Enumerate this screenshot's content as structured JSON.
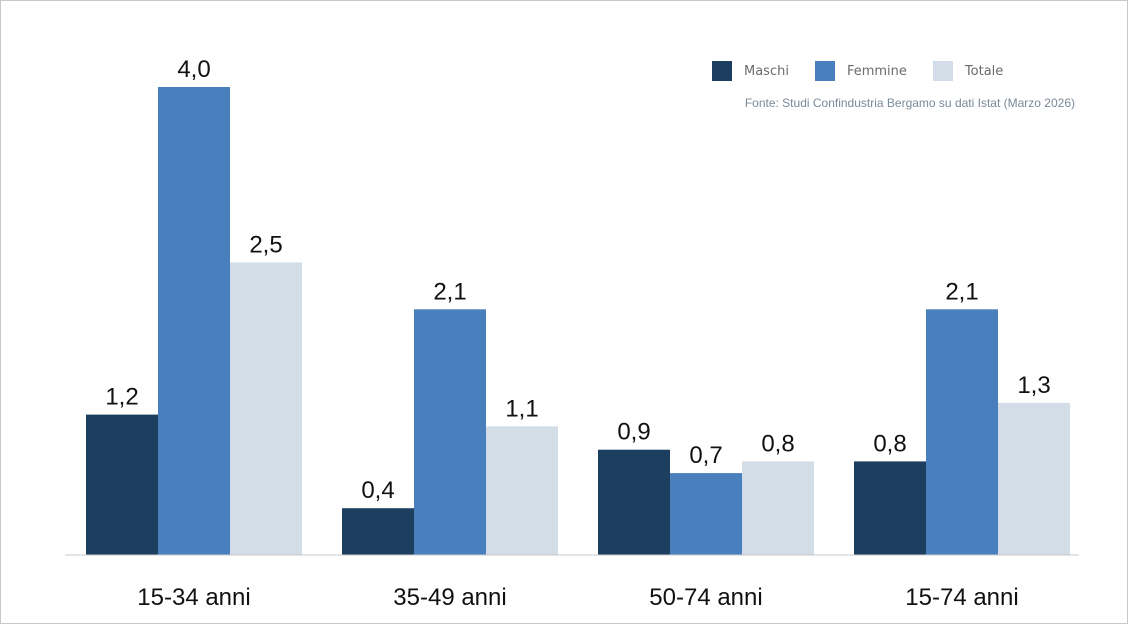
{
  "chart_data": {
    "type": "bar",
    "categories": [
      "15-34 anni",
      "35-49 anni",
      "50-74 anni",
      "15-74 anni"
    ],
    "series": [
      {
        "name": "Maschi",
        "values": [
          1.2,
          0.4,
          0.9,
          0.8
        ],
        "color": "#1c3f60"
      },
      {
        "name": "Femmine",
        "values": [
          4.0,
          2.1,
          0.7,
          2.1
        ],
        "color": "#4a7fbd"
      },
      {
        "name": "Totale",
        "values": [
          2.5,
          1.1,
          0.8,
          1.3
        ],
        "color": "#d3dde7"
      }
    ],
    "value_labels": [
      [
        "1,2",
        "0,4",
        "0,9",
        "0,8"
      ],
      [
        "4,0",
        "2,1",
        "0,7",
        "2,1"
      ],
      [
        "2,5",
        "1,1",
        "0,8",
        "1,3"
      ]
    ],
    "ylim": [
      0,
      4.3
    ],
    "grid": false,
    "legend_position": "top-right",
    "title": "",
    "xlabel": "",
    "ylabel": ""
  },
  "source_note": "Fonte: Studi Confindustria Bergamo su dati Istat (Marzo 2026)",
  "colors": {
    "axis": "#c8c8c8",
    "label_text": "#111111"
  }
}
